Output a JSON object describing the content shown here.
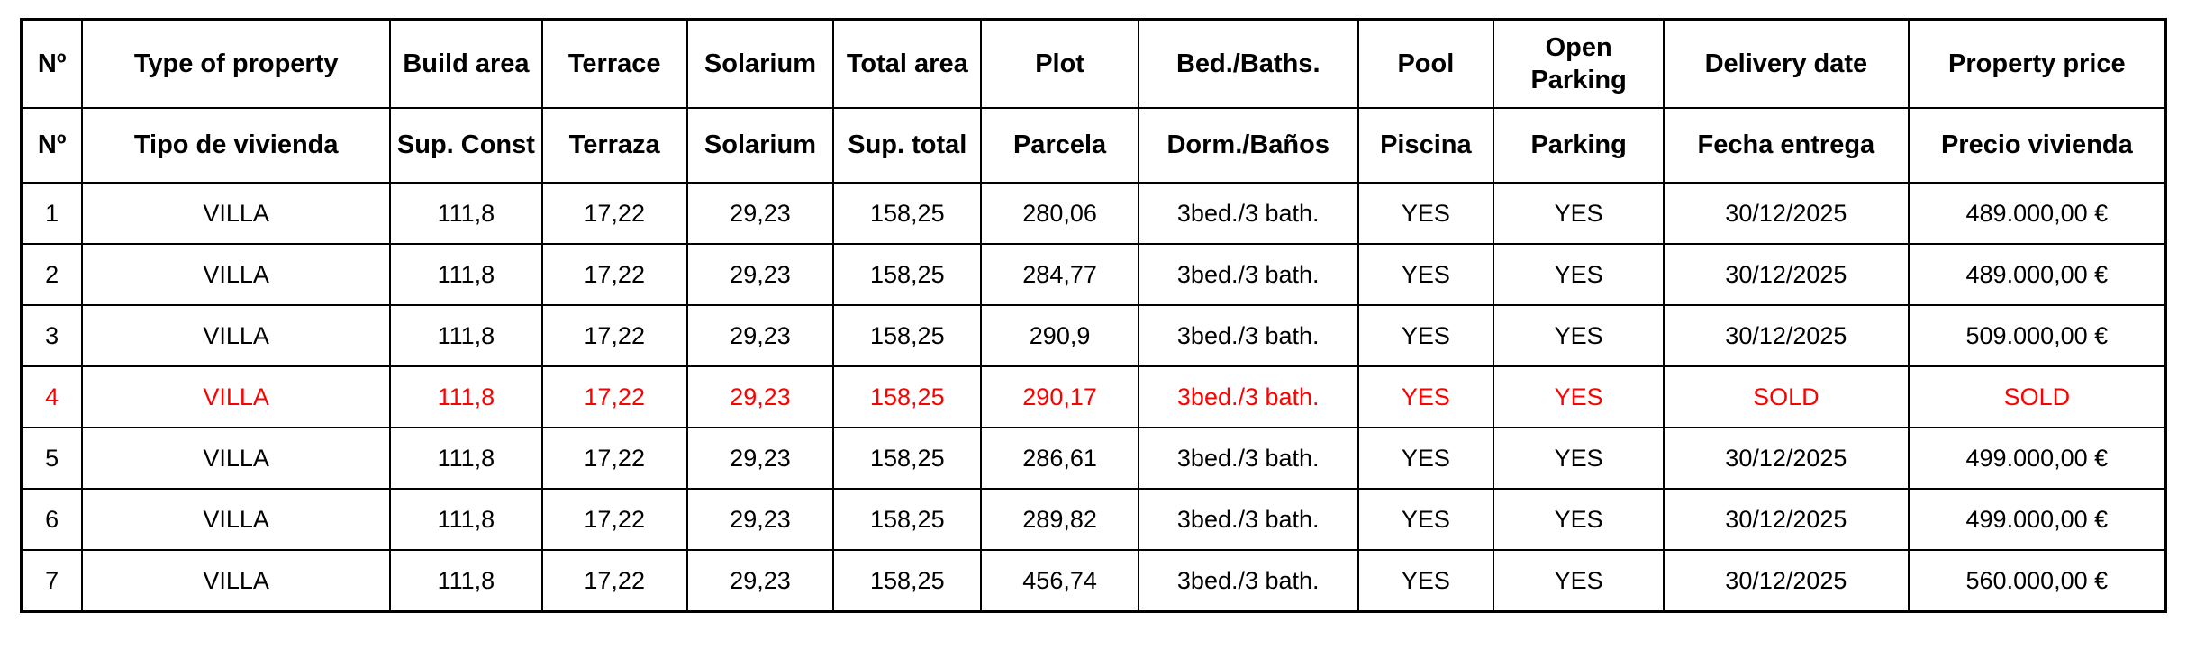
{
  "table": {
    "header_en": [
      "Nº",
      "Type of property",
      "Build area",
      "Terrace",
      "Solarium",
      "Total area",
      "Plot",
      "Bed./Baths.",
      "Pool",
      "Open Parking",
      "Delivery date",
      "Property price"
    ],
    "header_es": [
      "Nº",
      "Tipo de vivienda",
      "Sup. Const",
      "Terraza",
      "Solarium",
      "Sup. total",
      "Parcela",
      "Dorm./Baños",
      "Piscina",
      "Parking",
      "Fecha entrega",
      "Precio vivienda"
    ],
    "rows": [
      {
        "sold": false,
        "cells": [
          "1",
          "VILLA",
          "111,8",
          "17,22",
          "29,23",
          "158,25",
          "280,06",
          "3bed./3 bath.",
          "YES",
          "YES",
          "30/12/2025",
          "489.000,00 €"
        ]
      },
      {
        "sold": false,
        "cells": [
          "2",
          "VILLA",
          "111,8",
          "17,22",
          "29,23",
          "158,25",
          "284,77",
          "3bed./3 bath.",
          "YES",
          "YES",
          "30/12/2025",
          "489.000,00 €"
        ]
      },
      {
        "sold": false,
        "cells": [
          "3",
          "VILLA",
          "111,8",
          "17,22",
          "29,23",
          "158,25",
          "290,9",
          "3bed./3 bath.",
          "YES",
          "YES",
          "30/12/2025",
          "509.000,00 €"
        ]
      },
      {
        "sold": true,
        "cells": [
          "4",
          "VILLA",
          "111,8",
          "17,22",
          "29,23",
          "158,25",
          "290,17",
          "3bed./3 bath.",
          "YES",
          "YES",
          "SOLD",
          "SOLD"
        ]
      },
      {
        "sold": false,
        "cells": [
          "5",
          "VILLA",
          "111,8",
          "17,22",
          "29,23",
          "158,25",
          "286,61",
          "3bed./3 bath.",
          "YES",
          "YES",
          "30/12/2025",
          "499.000,00 €"
        ]
      },
      {
        "sold": false,
        "cells": [
          "6",
          "VILLA",
          "111,8",
          "17,22",
          "29,23",
          "158,25",
          "289,82",
          "3bed./3 bath.",
          "YES",
          "YES",
          "30/12/2025",
          "499.000,00 €"
        ]
      },
      {
        "sold": false,
        "cells": [
          "7",
          "VILLA",
          "111,8",
          "17,22",
          "29,23",
          "158,25",
          "456,74",
          "3bed./3 bath.",
          "YES",
          "YES",
          "30/12/2025",
          "560.000,00 €"
        ]
      }
    ],
    "colors": {
      "sold_text": "#ff0000",
      "text": "#000000",
      "border": "#000000",
      "background": "#ffffff"
    },
    "column_keys": [
      "num",
      "type",
      "build",
      "terr",
      "sola",
      "total",
      "plot",
      "beds",
      "pool",
      "park",
      "date",
      "price"
    ]
  }
}
